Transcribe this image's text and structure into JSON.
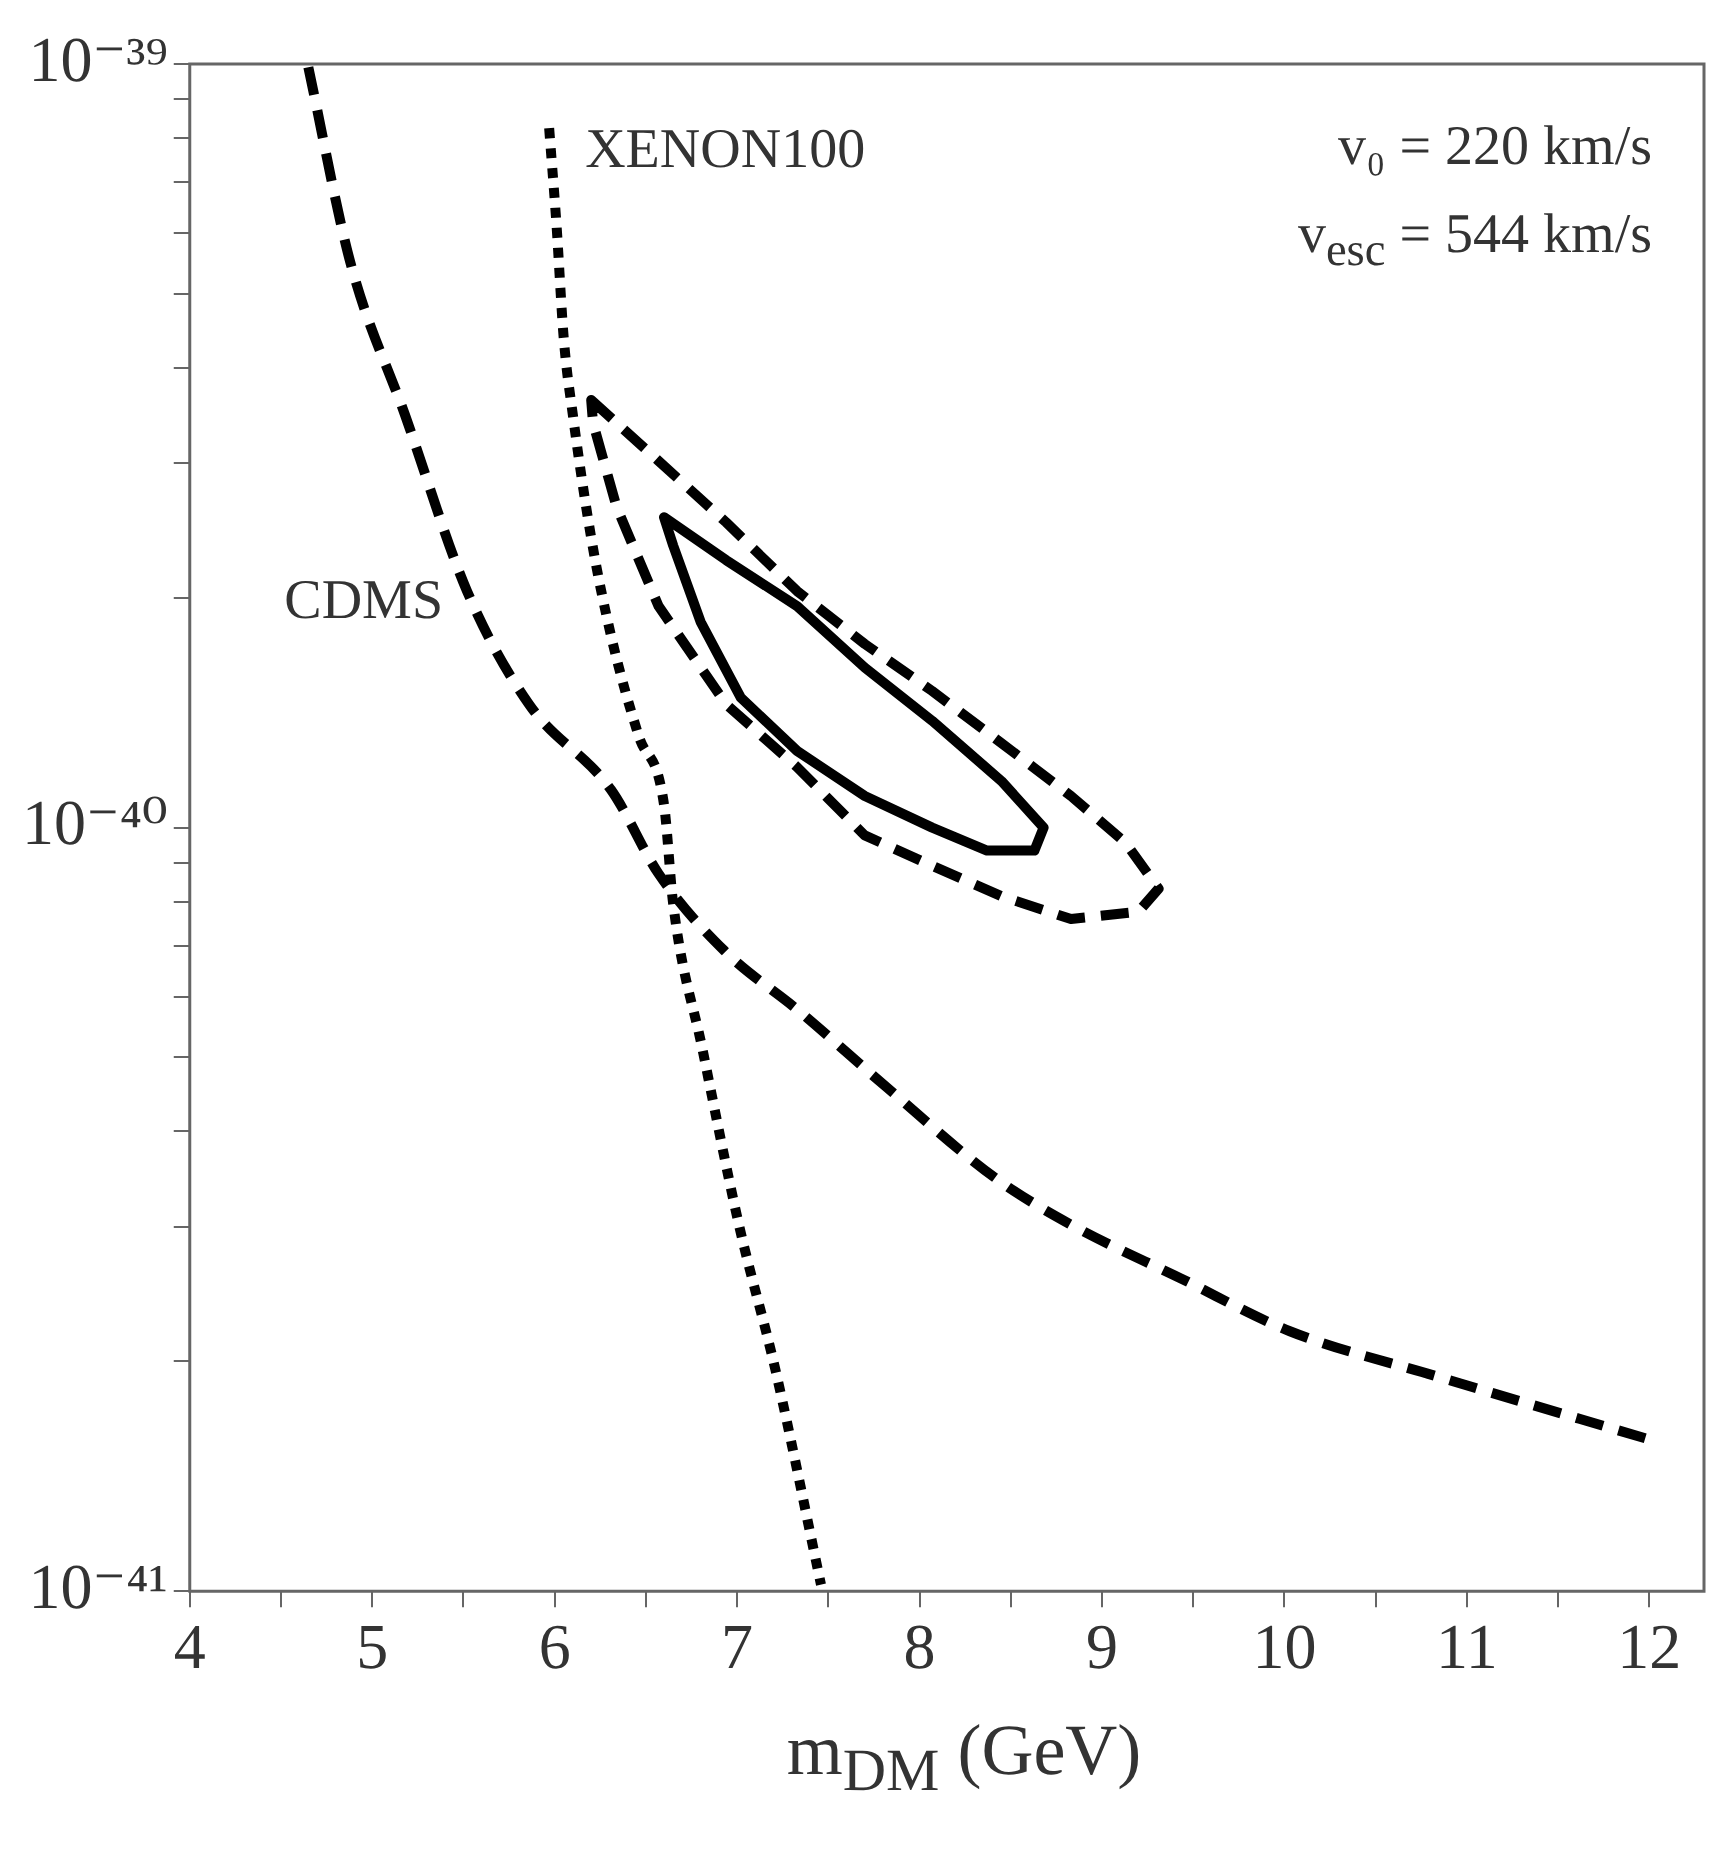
{
  "chart_data": {
    "type": "line",
    "xlabel": "m$_{DM}$ (GeV)",
    "annotations": [
      "v₀ = 220 km/s",
      "v$_{esc}$ = 544 km/s"
    ],
    "xlim": [
      4,
      12.3
    ],
    "xticks": [
      4,
      {
        "value": 4.5,
        "label": null
      },
      5,
      {
        "value": 5.5,
        "label": null
      },
      6,
      {
        "value": 6.5,
        "label": null
      },
      7,
      {
        "value": 7.5,
        "label": null
      },
      8,
      {
        "value": 8.5,
        "label": null
      },
      9,
      {
        "value": 9.5,
        "label": null
      },
      10,
      {
        "value": 10.5,
        "label": null
      },
      11,
      {
        "value": 11.5,
        "label": null
      },
      12
    ],
    "ylim": [
      1e-41,
      1e-39
    ],
    "yticks": [
      {
        "value": 1e-41,
        "label": "10⁻⁴¹"
      },
      {
        "value": 2e-41,
        "label": null
      },
      {
        "value": 3e-41,
        "label": null
      },
      {
        "value": 4e-41,
        "label": null
      },
      {
        "value": 5e-41,
        "label": null
      },
      {
        "value": 6e-41,
        "label": null
      },
      {
        "value": 7e-41,
        "label": null
      },
      {
        "value": 8e-41,
        "label": null
      },
      {
        "value": 9e-41,
        "label": null
      },
      {
        "value": 1e-40,
        "label": "10⁻⁴⁰"
      },
      {
        "value": 2e-40,
        "label": null
      },
      {
        "value": 3e-40,
        "label": null
      },
      {
        "value": 4e-40,
        "label": null
      },
      {
        "value": 5e-40,
        "label": null
      },
      {
        "value": 6e-40,
        "label": null
      },
      {
        "value": 7e-40,
        "label": null
      },
      {
        "value": 8e-40,
        "label": null
      },
      {
        "value": 9e-40,
        "label": null
      },
      {
        "value": 1e-39,
        "label": "10⁻³⁹"
      }
    ],
    "log": "y",
    "grid": false,
    "legend": false,
    "marker": "none",
    "series": [
      {
        "name": "XENON100",
        "color": "#000000",
        "line_style": "dotted",
        "x": [
          5.97,
          6.01,
          6.05,
          6.1,
          6.2,
          6.31,
          6.46,
          6.6,
          6.65,
          6.81,
          7.01,
          7.21,
          7.46
        ],
        "values": [
          8.24e-40,
          6.17e-40,
          4.37e-40,
          3.47e-40,
          2.4e-40,
          1.78e-40,
          1.32e-40,
          1.07e-40,
          7.94e-41,
          5.13e-41,
          3.02e-41,
          1.95e-41,
          1.02e-41
        ]
      },
      {
        "name": "CDMS",
        "color": "#000000",
        "line_style": "dashed",
        "x": [
          4.65,
          4.88,
          5.18,
          5.52,
          5.86,
          6.31,
          6.57,
          6.93,
          7.34,
          7.82,
          8.42,
          8.83,
          9.43,
          10.03,
          10.84,
          12.0
        ],
        "values": [
          9.9e-40,
          5.5e-40,
          3.47e-40,
          2.04e-40,
          1.45e-40,
          1.12e-40,
          8.7e-41,
          6.9e-41,
          5.75e-41,
          4.57e-41,
          3.47e-41,
          3.02e-41,
          2.57e-41,
          2.19e-41,
          1.91e-41,
          1.58e-41
        ]
      }
    ]
  }
}
